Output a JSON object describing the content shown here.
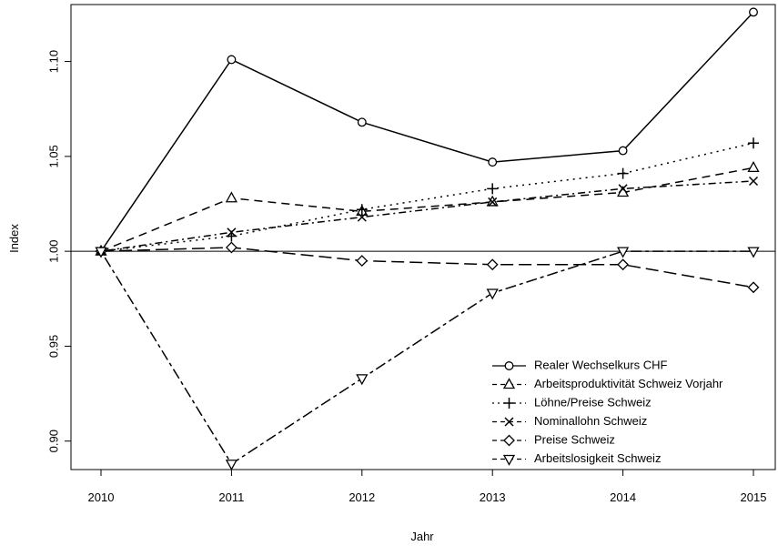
{
  "chart_data": {
    "type": "line",
    "title": "",
    "xlabel": "Jahr",
    "ylabel": "Index",
    "x": [
      2010,
      2011,
      2012,
      2013,
      2014,
      2015
    ],
    "xlim": [
      2010,
      2015
    ],
    "ylim": [
      0.885,
      1.13
    ],
    "yticks": [
      0.9,
      0.95,
      1.0,
      1.05,
      1.1
    ],
    "ytick_labels": [
      "0.90",
      "0.95",
      "1.00",
      "1.05",
      "1.10"
    ],
    "xtick_labels": [
      "2010",
      "2011",
      "2012",
      "2013",
      "2014",
      "2015"
    ],
    "reference_line": 1.0,
    "grid": false,
    "legend_position": "bottom-right",
    "series": [
      {
        "name": "Realer Wechselkurs CHF",
        "marker": "circle",
        "dash": "solid",
        "values": [
          1.0,
          1.101,
          1.068,
          1.047,
          1.053,
          1.126
        ]
      },
      {
        "name": "Arbeitsproduktivität Schweiz Vorjahr",
        "marker": "triangle-up",
        "dash": "dashed",
        "values": [
          1.0,
          1.028,
          1.021,
          1.026,
          1.031,
          1.044
        ]
      },
      {
        "name": "Löhne/Preise Schweiz",
        "marker": "plus",
        "dash": "dotted",
        "values": [
          1.0,
          1.008,
          1.022,
          1.033,
          1.041,
          1.057
        ]
      },
      {
        "name": "Nominallohn Schweiz",
        "marker": "cross",
        "dash": "dotdash",
        "values": [
          1.0,
          1.01,
          1.018,
          1.026,
          1.033,
          1.037
        ]
      },
      {
        "name": "Preise Schweiz",
        "marker": "diamond",
        "dash": "longdash",
        "values": [
          1.0,
          1.002,
          0.995,
          0.993,
          0.993,
          0.981
        ]
      },
      {
        "name": "Arbeitslosigkeit Schweiz",
        "marker": "triangle-down",
        "dash": "twodash",
        "values": [
          1.0,
          0.888,
          0.933,
          0.978,
          1.0,
          1.0
        ]
      }
    ]
  }
}
